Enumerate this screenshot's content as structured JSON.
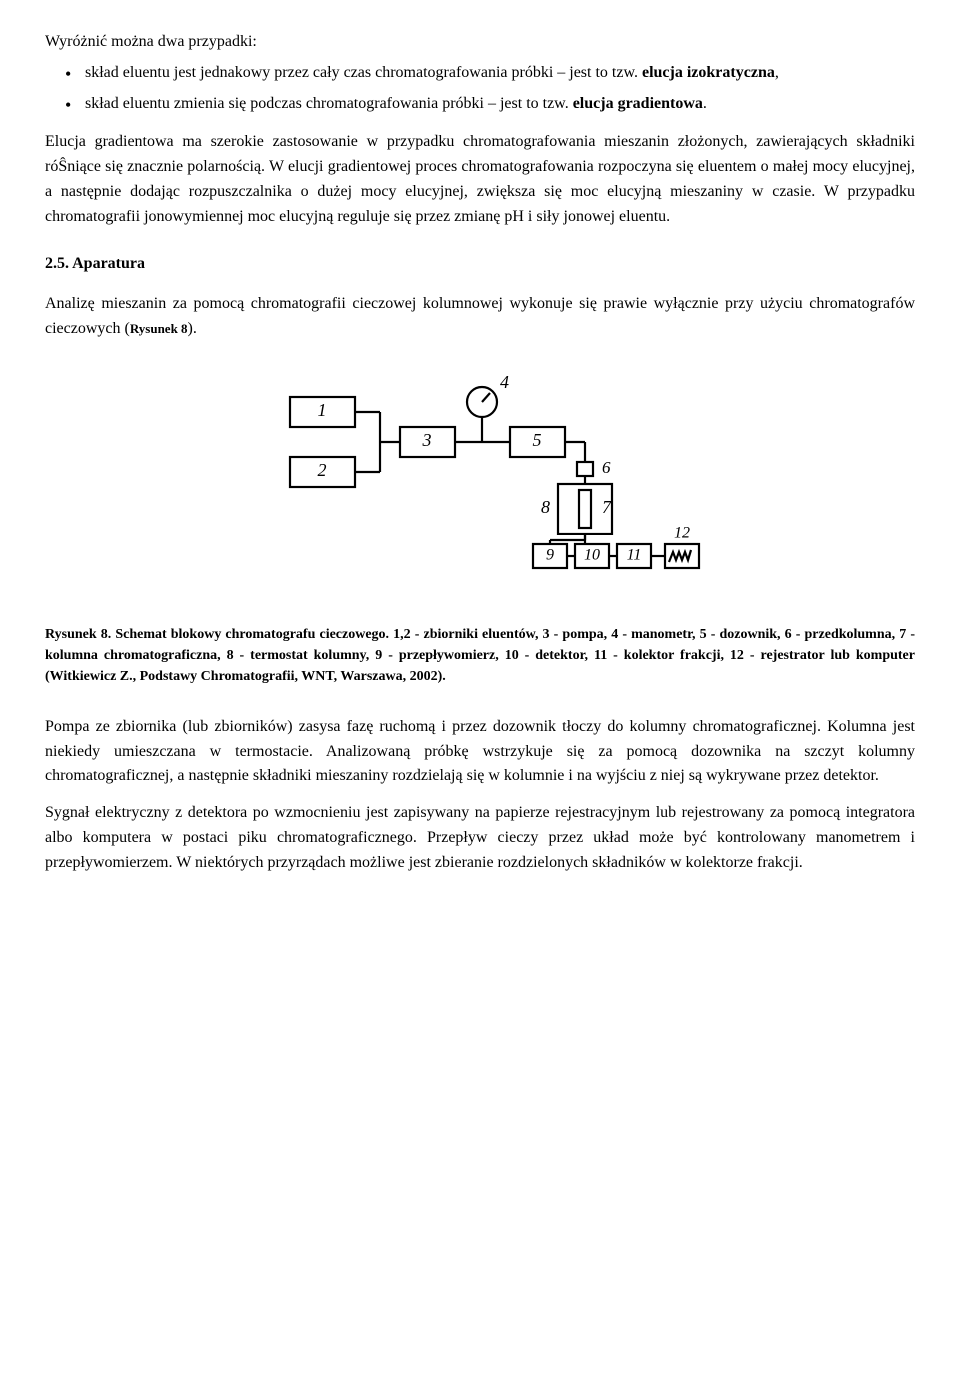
{
  "intro": "Wyróżnić można dwa przypadki:",
  "bullet1_a": "skład eluentu jest jednakowy przez cały czas chromatografowania próbki – jest to tzw. ",
  "bullet1_b": "elucja izokratyczna",
  "bullet1_c": ",",
  "bullet2_a": "skład eluentu zmienia się podczas chromatografowania próbki – jest to tzw. ",
  "bullet2_b": "elucja gradientowa",
  "bullet2_c": ".",
  "para1": "Elucja gradientowa ma szerokie zastosowanie w przypadku chromatografowania mieszanin złożonych, zawierających składniki róŜniące się znacznie polarnością. W elucji gradientowej proces chromatografowania rozpoczyna się eluentem o małej mocy elucyjnej, a następnie dodając rozpuszczalnika o dużej mocy elucyjnej, zwiększa się moc elucyjną mieszaniny w czasie. W przypadku chromatografii jonowymiennej moc elucyjną reguluje się przez zmianę pH i siły jonowej eluentu.",
  "section_title": "2.5. Aparatura",
  "para2_a": "Analizę mieszanin za pomocą chromatografii cieczowej kolumnowej wykonuje się prawie wyłącznie przy użyciu chromatografów cieczowych (",
  "para2_ref": "Rysunek 8",
  "para2_b": ").",
  "figure": {
    "labels": {
      "n1": "1",
      "n2": "2",
      "n3": "3",
      "n4": "4",
      "n5": "5",
      "n6": "6",
      "n7": "7",
      "n8": "8",
      "n9": "9",
      "n10": "10",
      "n11": "11",
      "n12": "12"
    },
    "stroke": "#000000",
    "stroke_width": 2.2,
    "bg": "#ffffff",
    "font_family": "Times New Roman, serif",
    "font_size": 18
  },
  "caption": "Rysunek 8. Schemat blokowy chromatografu cieczowego. 1,2 - zbiorniki eluentów, 3 - pompa, 4 - manometr, 5 - dozownik, 6 - przedkolumna, 7 - kolumna chromatograficzna, 8 - termostat kolumny, 9 - przepływomierz, 10 - detektor, 11 - kolektor frakcji, 12 - rejestrator lub komputer (Witkiewicz Z., Podstawy Chromatografii, WNT, Warszawa, 2002).",
  "para3": "Pompa ze zbiornika (lub zbiorników) zasysa fazę ruchomą i przez dozownik tłoczy do kolumny chromatograficznej. Kolumna jest niekiedy umieszczana w termostacie. Analizowaną próbkę wstrzykuje się za pomocą dozownika na szczyt kolumny chromatograficznej, a następnie składniki mieszaniny rozdzielają się w kolumnie i na wyjściu z niej są wykrywane przez detektor.",
  "para4": "Sygnał elektryczny z detektora po wzmocnieniu jest zapisywany na papierze rejestracyjnym lub rejestrowany za pomocą integratora albo komputera w postaci piku chromatograficznego. Przepływ cieczy przez układ może być kontrolowany manometrem i przepływomierzem. W niektórych przyrządach możliwe jest zbieranie rozdzielonych składników w kolektorze frakcji."
}
